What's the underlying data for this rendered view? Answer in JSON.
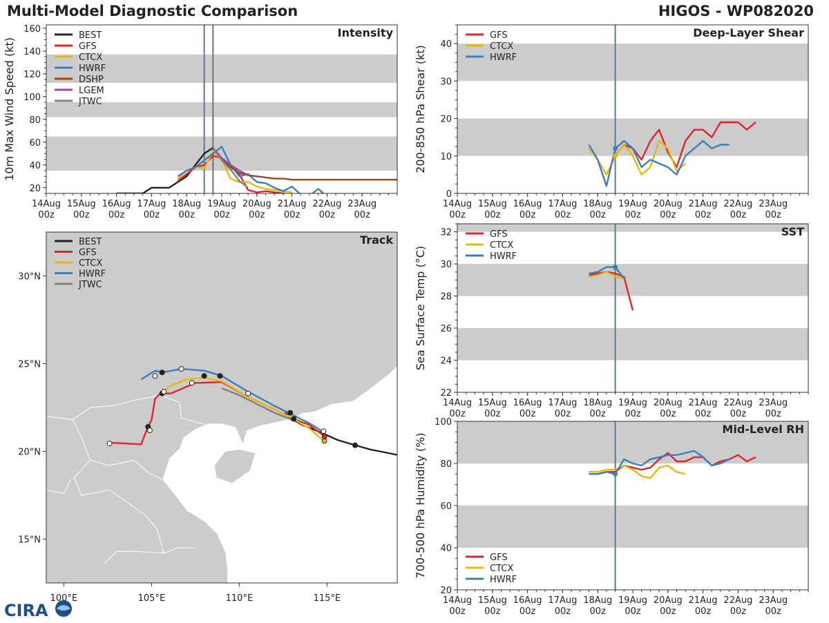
{
  "header": {
    "title": "Multi-Model Diagnostic Comparison",
    "storm": "HIGOS - WP082020"
  },
  "logo": {
    "text": "CIRA"
  },
  "colors": {
    "BEST": "#222222",
    "GFS": "#e0242a",
    "CTCX": "#e8b90c",
    "HWRF": "#3a7fb9",
    "DSHP": "#97491d",
    "LGEM": "#9a4aa3",
    "JTWC": "#808080"
  },
  "time_axis": {
    "ticks": [
      "14Aug\n00z",
      "15Aug\n00z",
      "16Aug\n00z",
      "17Aug\n00z",
      "18Aug\n00z",
      "19Aug\n00z",
      "20Aug\n00z",
      "21Aug\n00z",
      "22Aug\n00z",
      "23Aug\n00z"
    ],
    "range_days": [
      0,
      10
    ]
  },
  "chart_data": [
    {
      "id": "intensity",
      "type": "line",
      "title": "Intensity",
      "ylabel": "10m Max Wind Speed (kt)",
      "ylim": [
        15,
        163
      ],
      "yticks": [
        20,
        40,
        60,
        80,
        100,
        120,
        140,
        160
      ],
      "bands": [
        [
          35,
          65
        ],
        [
          82,
          95
        ],
        [
          112,
          137
        ]
      ],
      "vlines": [
        {
          "x": 4.5,
          "color": "#5a7a92"
        },
        {
          "x": 4.75,
          "color": "#7a6a80"
        }
      ],
      "legend": [
        "BEST",
        "GFS",
        "CTCX",
        "HWRF",
        "DSHP",
        "LGEM",
        "JTWC"
      ],
      "series": [
        {
          "name": "BEST",
          "x": [
            2,
            2.25,
            2.5,
            2.75,
            3,
            3.25,
            3.5,
            3.75,
            4,
            4.25,
            4.5,
            4.75
          ],
          "y": [
            15,
            15,
            15,
            15,
            20,
            20,
            20,
            25,
            30,
            40,
            50,
            55
          ]
        },
        {
          "name": "GFS",
          "x": [
            3.75,
            4,
            4.25,
            4.5,
            4.75,
            5,
            5.25,
            5.5,
            5.75,
            6,
            6.25,
            6.5,
            6.75,
            7,
            7.25,
            7.5
          ],
          "y": [
            26,
            32,
            38,
            40,
            48,
            46,
            40,
            32,
            18,
            16,
            17,
            16,
            15,
            14,
            12,
            10
          ]
        },
        {
          "name": "CTCX",
          "x": [
            3.75,
            4,
            4.25,
            4.5,
            4.75,
            5,
            5.25,
            5.5,
            5.75,
            6,
            6.25,
            6.5,
            6.75,
            7
          ],
          "y": [
            28,
            35,
            38,
            37,
            52,
            45,
            28,
            25,
            25,
            21,
            19,
            18,
            17,
            16
          ]
        },
        {
          "name": "HWRF",
          "x": [
            3.75,
            4,
            4.25,
            4.5,
            4.75,
            5,
            5.25,
            5.5,
            5.75,
            6,
            6.25,
            6.5,
            6.75,
            7,
            7.25,
            7.5,
            7.75,
            8,
            8.25
          ],
          "y": [
            30,
            35,
            38,
            44,
            50,
            56,
            40,
            30,
            32,
            25,
            24,
            20,
            17,
            21,
            14,
            13,
            19,
            12,
            10
          ]
        },
        {
          "name": "DSHP",
          "x": [
            4.75,
            5,
            5.25,
            5.5,
            5.75,
            6,
            6.25,
            6.5,
            6.75,
            7,
            7.5,
            8,
            8.5,
            9,
            9.5,
            10
          ],
          "y": [
            55,
            45,
            38,
            33,
            31,
            30,
            29,
            28,
            28,
            27,
            27,
            27,
            27,
            27,
            27,
            27
          ]
        },
        {
          "name": "LGEM",
          "x": [
            4.75,
            5,
            5.25,
            5.5,
            5.75
          ],
          "y": [
            55,
            46,
            40,
            35,
            31
          ]
        },
        {
          "name": "JTWC",
          "x": [
            4.75,
            5,
            5.25,
            5.5,
            5.75
          ],
          "y": [
            55,
            44,
            36,
            26,
            20
          ]
        }
      ]
    },
    {
      "id": "shear",
      "type": "line",
      "title": "Deep-Layer Shear",
      "ylabel": "200-850 hPa Shear (kt)",
      "ylim": [
        0,
        45
      ],
      "yticks": [
        0,
        10,
        20,
        30,
        40
      ],
      "bands": [
        [
          10,
          20
        ],
        [
          30,
          40
        ]
      ],
      "vlines": [
        {
          "x": 4.5,
          "color": "#5a7a92"
        }
      ],
      "legend": [
        "GFS",
        "CTCX",
        "HWRF"
      ],
      "series": [
        {
          "name": "GFS",
          "x": [
            4.5,
            4.75,
            5,
            5.25,
            5.5,
            5.75,
            6,
            6.25,
            6.5,
            6.75,
            7,
            7.25,
            7.5,
            7.75,
            8,
            8.25,
            8.5
          ],
          "y": [
            10,
            13,
            12,
            9,
            14,
            17,
            11,
            7,
            14,
            17,
            17,
            15,
            19,
            19,
            19,
            17,
            19
          ]
        },
        {
          "name": "CTCX",
          "x": [
            3.75,
            4,
            4.25,
            4.5,
            4.75,
            5,
            5.25,
            5.5,
            5.75,
            6,
            6.25,
            6.5
          ],
          "y": [
            12,
            9,
            5,
            10,
            13,
            10,
            5,
            7,
            14,
            12,
            6,
            8
          ]
        },
        {
          "name": "HWRF",
          "x": [
            3.75,
            4,
            4.25,
            4.5,
            4.75,
            5,
            5.25,
            5.5,
            5.75,
            6,
            6.25,
            6.5,
            6.75,
            7,
            7.25,
            7.5,
            7.75
          ],
          "y": [
            13,
            9,
            2,
            12,
            14,
            12,
            7,
            9,
            8,
            7,
            5,
            10,
            12,
            14,
            12,
            13,
            13
          ]
        }
      ],
      "markers": [
        {
          "series": "CTCX",
          "x": 4.5,
          "y": 10
        },
        {
          "series": "HWRF",
          "x": 4.5,
          "y": 12
        }
      ]
    },
    {
      "id": "sst",
      "type": "line",
      "title": "SST",
      "ylabel": "Sea Surface Temp (°C)",
      "ylim": [
        22,
        32.5
      ],
      "yticks": [
        22,
        24,
        26,
        28,
        30,
        32
      ],
      "bands": [
        [
          24,
          26
        ],
        [
          28,
          30
        ],
        [
          32,
          33
        ]
      ],
      "vlines": [
        {
          "x": 4.5,
          "color": "#5a7a92"
        }
      ],
      "legend": [
        "GFS",
        "CTCX",
        "HWRF"
      ],
      "series": [
        {
          "name": "GFS",
          "x": [
            3.75,
            4,
            4.25,
            4.5,
            4.75,
            5
          ],
          "y": [
            29.3,
            29.4,
            29.5,
            29.4,
            29.2,
            27.1
          ]
        },
        {
          "name": "CTCX",
          "x": [
            3.75,
            4,
            4.25,
            4.5,
            4.75
          ],
          "y": [
            29.2,
            29.3,
            29.5,
            29.2,
            29.1
          ]
        },
        {
          "name": "HWRF",
          "x": [
            3.75,
            4,
            4.25,
            4.5,
            4.75
          ],
          "y": [
            29.4,
            29.5,
            29.8,
            29.8,
            29.1
          ]
        }
      ],
      "markers": [
        {
          "series": "HWRF",
          "x": 4.5,
          "y": 29.8
        }
      ]
    },
    {
      "id": "rh",
      "type": "line",
      "title": "Mid-Level RH",
      "ylabel": "700-500 hPa Humidity (%)",
      "ylim": [
        20,
        100
      ],
      "yticks": [
        20,
        40,
        60,
        80,
        100
      ],
      "bands": [
        [
          40,
          60
        ],
        [
          80,
          100
        ]
      ],
      "vlines": [
        {
          "x": 4.5,
          "color": "#5a7a92"
        }
      ],
      "legend": [
        "GFS",
        "CTCX",
        "HWRF"
      ],
      "series": [
        {
          "name": "GFS",
          "x": [
            3.75,
            4,
            4.25,
            4.5,
            4.75,
            5,
            5.25,
            5.5,
            5.75,
            6,
            6.25,
            6.5,
            6.75,
            7,
            7.25,
            7.5,
            7.75,
            8,
            8.25,
            8.5
          ],
          "y": [
            75,
            75,
            76,
            76,
            79,
            78,
            77,
            78,
            82,
            85,
            81,
            81,
            83,
            83,
            79,
            81,
            82,
            84,
            81,
            83
          ]
        },
        {
          "name": "CTCX",
          "x": [
            3.75,
            4,
            4.25,
            4.5,
            4.75,
            5,
            5.25,
            5.5,
            5.75,
            6,
            6.25,
            6.5
          ],
          "y": [
            76,
            76,
            77,
            77,
            79,
            77,
            74,
            73,
            78,
            79,
            76,
            75
          ]
        },
        {
          "name": "HWRF",
          "x": [
            3.75,
            4,
            4.25,
            4.5,
            4.75,
            5,
            5.25,
            5.5,
            5.75,
            6,
            6.25,
            6.5,
            6.75,
            7,
            7.25,
            7.5,
            7.75
          ],
          "y": [
            75,
            75,
            76,
            75,
            82,
            80,
            79,
            82,
            83,
            84,
            84,
            85,
            86,
            83,
            79,
            80,
            82
          ]
        }
      ],
      "markers": [
        {
          "series": "HWRF",
          "x": 4.5,
          "y": 75
        }
      ]
    },
    {
      "id": "track",
      "type": "map-track",
      "title": "Track",
      "lon_range": [
        99,
        119
      ],
      "lat_range": [
        12.5,
        32.5
      ],
      "lon_ticks": [
        100,
        105,
        110,
        115
      ],
      "lat_ticks": [
        15,
        20,
        25,
        30
      ],
      "lon_labels": [
        "100°E",
        "105°E",
        "110°E",
        "115°E"
      ],
      "lat_labels": [
        "15°N",
        "20°N",
        "25°N",
        "30°N"
      ],
      "legend": [
        "BEST",
        "GFS",
        "CTCX",
        "HWRF",
        "JTWC"
      ],
      "series": [
        {
          "name": "BEST",
          "lon": [
            119,
            118.5,
            117.5,
            116.6,
            115.6,
            114.6,
            113.6,
            112.9,
            112.6
          ],
          "lat": [
            19.8,
            19.9,
            20.1,
            20.35,
            20.65,
            21.1,
            21.5,
            21.9,
            22.2
          ]
        },
        {
          "name": "GFS",
          "lon": [
            114.8,
            114,
            113,
            112,
            110.5,
            109,
            107.5,
            106.1,
            105.5,
            105.2,
            105,
            104.8,
            104.4,
            102.6
          ],
          "lat": [
            20.9,
            21.5,
            21.9,
            22.4,
            23.1,
            23.95,
            23.9,
            23.3,
            23.3,
            23.0,
            21.8,
            21.4,
            20.4,
            20.5
          ]
        },
        {
          "name": "CTCX",
          "lon": [
            114.8,
            114,
            113,
            112,
            110.5,
            109,
            108,
            107,
            106,
            105.6
          ],
          "lat": [
            20.6,
            21.3,
            21.9,
            22.4,
            23.1,
            24.0,
            24.2,
            24.1,
            23.7,
            23.3
          ]
        },
        {
          "name": "HWRF",
          "lon": [
            114.8,
            114,
            113,
            112,
            110.5,
            109,
            108,
            106.7,
            105.6,
            105.2,
            104.4
          ],
          "lat": [
            21.1,
            21.6,
            22.1,
            22.6,
            23.4,
            24.3,
            24.6,
            24.7,
            24.5,
            24.6,
            24.1
          ]
        },
        {
          "name": "JTWC",
          "lon": [
            109,
            110,
            111,
            112,
            113
          ],
          "lat": [
            23.6,
            23.2,
            22.7,
            22.2,
            21.8
          ]
        }
      ],
      "points": [
        {
          "lon": 116.6,
          "lat": 20.35,
          "fill": "#222222"
        },
        {
          "lon": 112.9,
          "lat": 22.2,
          "fill": "#222222"
        },
        {
          "lon": 113.1,
          "lat": 21.85,
          "fill": "#222222"
        },
        {
          "lon": 108.9,
          "lat": 24.3,
          "fill": "#222222"
        },
        {
          "lon": 108,
          "lat": 24.3,
          "fill": "#222222"
        },
        {
          "lon": 105.6,
          "lat": 24.5,
          "fill": "#222222"
        },
        {
          "lon": 105.6,
          "lat": 23.3,
          "fill": "#222222"
        },
        {
          "lon": 104.8,
          "lat": 21.4,
          "fill": "#222222"
        },
        {
          "lon": 105.2,
          "lat": 24.3,
          "fill": "#ffffff"
        },
        {
          "lon": 106.7,
          "lat": 24.7,
          "fill": "#ffffff"
        },
        {
          "lon": 107.3,
          "lat": 23.9,
          "fill": "#ffffff"
        },
        {
          "lon": 110.5,
          "lat": 23.3,
          "fill": "#ffffff"
        },
        {
          "lon": 105.7,
          "lat": 23.4,
          "fill": "#ffffff"
        },
        {
          "lon": 104.9,
          "lat": 21.2,
          "fill": "#ffffff"
        },
        {
          "lon": 102.6,
          "lat": 20.45,
          "fill": "#ffffff"
        },
        {
          "lon": 114.8,
          "lat": 21.15,
          "fill": "#ffffff"
        },
        {
          "lon": 114.85,
          "lat": 20.6,
          "fill": "#e8b90c"
        },
        {
          "lon": 114.85,
          "lat": 20.85,
          "fill": "#e0242a"
        }
      ]
    }
  ]
}
